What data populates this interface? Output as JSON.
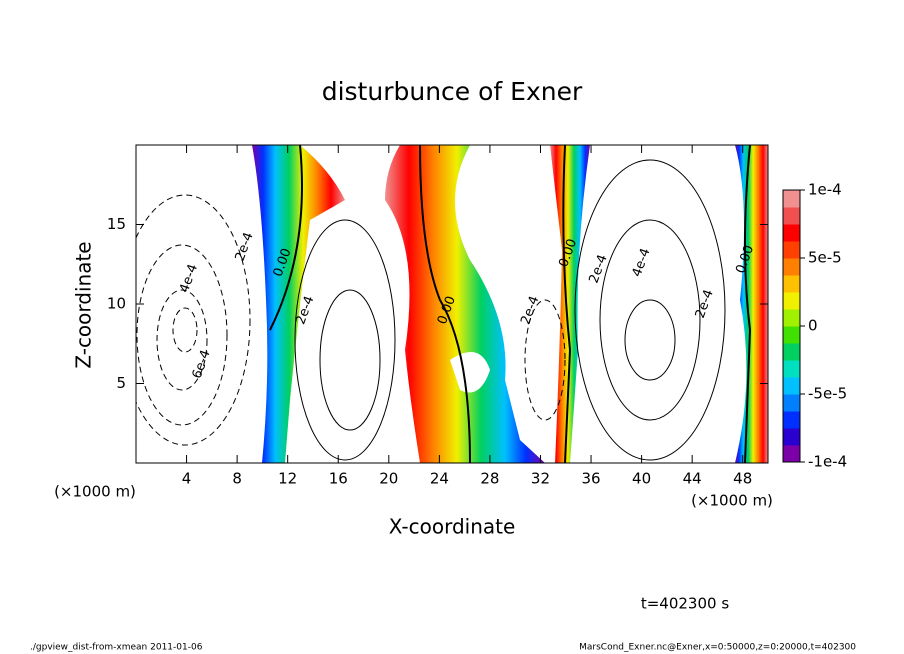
{
  "chart_data": {
    "type": "contour",
    "title": "disturbunce of Exner",
    "xlabel": "X-coordinate",
    "ylabel": "Z-coordinate",
    "xunit": "(×1000 m)",
    "xunit_right": "(×1000 m)",
    "xlim": [
      0,
      50
    ],
    "ylim": [
      0,
      20
    ],
    "xticks": [
      4,
      8,
      12,
      16,
      20,
      24,
      28,
      32,
      36,
      40,
      44,
      48
    ],
    "yticks": [
      5,
      10,
      15
    ],
    "colorbar_lim": [
      -0.0001,
      0.0001
    ],
    "colorbar_ticks": [
      {
        "value": 0.0001,
        "label": "1e-4"
      },
      {
        "value": 5e-05,
        "label": "5e-5"
      },
      {
        "value": 0,
        "label": "0"
      },
      {
        "value": -5e-05,
        "label": "-5e-5"
      },
      {
        "value": -0.0001,
        "label": "-1e-4"
      }
    ],
    "colormap": [
      "#7b00a8",
      "#2a00d0",
      "#0030ff",
      "#0080ff",
      "#00c0ff",
      "#00e0c0",
      "#00d060",
      "#40e000",
      "#a0f000",
      "#f0f000",
      "#ffc000",
      "#ff8000",
      "#ff4000",
      "#ff0000",
      "#f05050",
      "#f09090"
    ],
    "contour_labels": [
      {
        "text": "0.00",
        "x": 11.6,
        "z": 12.6
      },
      {
        "text": "2e-4",
        "x": 8.6,
        "z": 13.6
      },
      {
        "text": "4e-4",
        "x": 4.2,
        "z": 11.6
      },
      {
        "text": "6e-4",
        "x": 5.2,
        "z": 6.2
      },
      {
        "text": "2e-4",
        "x": 13.4,
        "z": 9.6
      },
      {
        "text": "0.00",
        "x": 24.6,
        "z": 9.6
      },
      {
        "text": "2e-4",
        "x": 31.2,
        "z": 9.6
      },
      {
        "text": "0.00",
        "x": 34.2,
        "z": 13.2
      },
      {
        "text": "2e-4",
        "x": 36.6,
        "z": 12.2
      },
      {
        "text": "4e-4",
        "x": 40,
        "z": 12.6
      },
      {
        "text": "2e-4",
        "x": 45,
        "z": 10
      },
      {
        "text": "0.00",
        "x": 48.2,
        "z": 12.8
      }
    ],
    "time_label": "t=402300 s",
    "footer_left": "./gpview_dist-from-xmean  2011-01-06",
    "footer_right": "MarsCond_Exner.nc@Exner,x=0:50000,z=0:20000,t=402300"
  }
}
